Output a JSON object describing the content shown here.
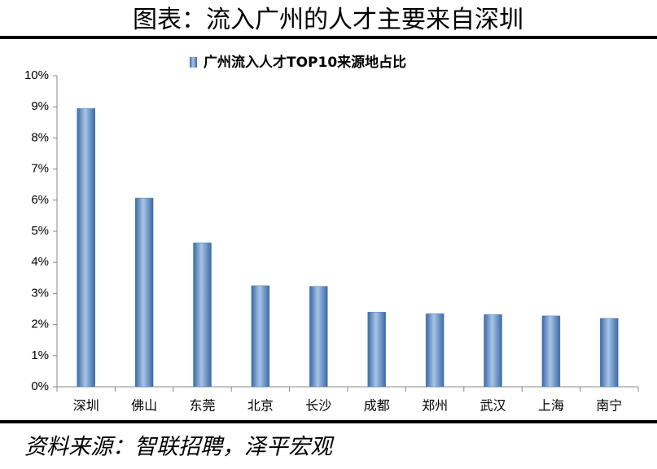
{
  "chart_data": {
    "type": "bar",
    "title": "图表：流入广州的人才主要来自深圳",
    "source": "资料来源：智联招聘，泽平宏观",
    "categories": [
      "深圳",
      "佛山",
      "东莞",
      "北京",
      "长沙",
      "成都",
      "郑州",
      "武汉",
      "上海",
      "南宁"
    ],
    "series": [
      {
        "name": "广州流入人才TOP10来源地占比",
        "color": "#4f81bd",
        "values": [
          8.95,
          6.07,
          4.63,
          3.25,
          3.23,
          2.4,
          2.35,
          2.32,
          2.28,
          2.2
        ]
      }
    ],
    "ylim": [
      0,
      10
    ],
    "yticks": [
      {
        "value": 0,
        "label": "0%"
      },
      {
        "value": 1,
        "label": "1%"
      },
      {
        "value": 2,
        "label": "2%"
      },
      {
        "value": 3,
        "label": "3%"
      },
      {
        "value": 4,
        "label": "4%"
      },
      {
        "value": 5,
        "label": "5%"
      },
      {
        "value": 6,
        "label": "6%"
      },
      {
        "value": 7,
        "label": "7%"
      },
      {
        "value": 8,
        "label": "8%"
      },
      {
        "value": 9,
        "label": "9%"
      },
      {
        "value": 10,
        "label": "10%"
      }
    ],
    "grid": false
  }
}
